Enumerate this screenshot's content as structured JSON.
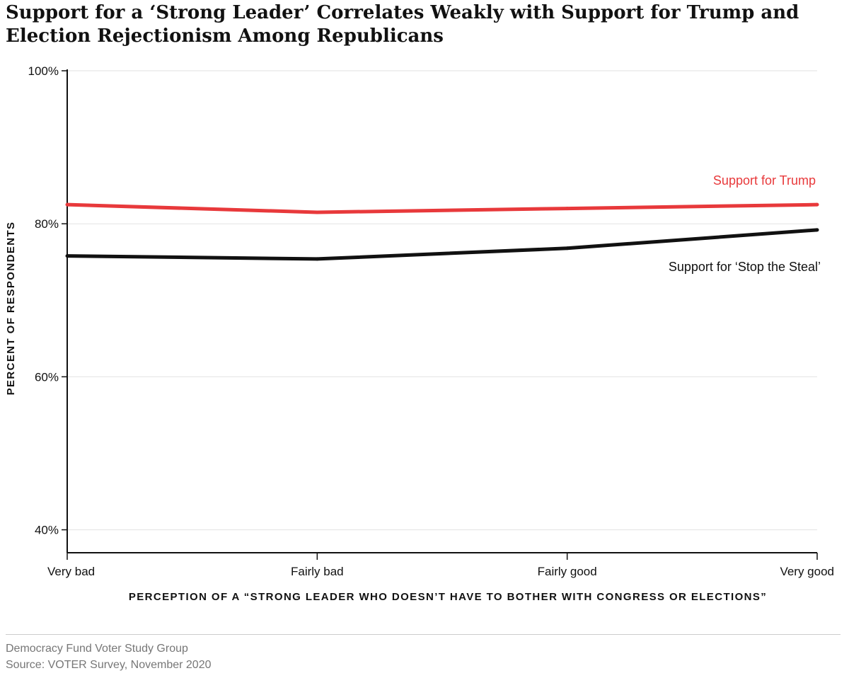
{
  "title": "Support for a ‘Strong Leader’ Correlates Weakly with Support for Trump and Election Rejectionism Among Republicans",
  "footer": {
    "organization": "Democracy Fund Voter Study Group",
    "source": "Source: VOTER Survey, November 2020"
  },
  "chart_data": {
    "type": "line",
    "title": "Support for a ‘Strong Leader’ Correlates Weakly with Support for Trump and Election Rejectionism Among Republicans",
    "xlabel": "PERCEPTION OF A “STRONG LEADER WHO DOESN’T HAVE TO BOTHER WITH CONGRESS OR ELECTIONS”",
    "ylabel": "PERCENT OF RESPONDENTS",
    "categories": [
      "Very bad",
      "Fairly bad",
      "Fairly good",
      "Very good"
    ],
    "ylim": [
      37,
      100
    ],
    "yticks": [
      100,
      80,
      60,
      40
    ],
    "ytick_labels": [
      "100%",
      "80%",
      "60%",
      "40%"
    ],
    "grid": true,
    "legend": "direct labels near line ends",
    "series": [
      {
        "name": "Support for Trump",
        "color": "#e8393b",
        "values": [
          82.5,
          81.5,
          82.0,
          82.5
        ]
      },
      {
        "name": "Support for ‘Stop the Steal’",
        "color": "#111111",
        "values": [
          75.8,
          75.4,
          76.8,
          79.2
        ]
      }
    ]
  }
}
